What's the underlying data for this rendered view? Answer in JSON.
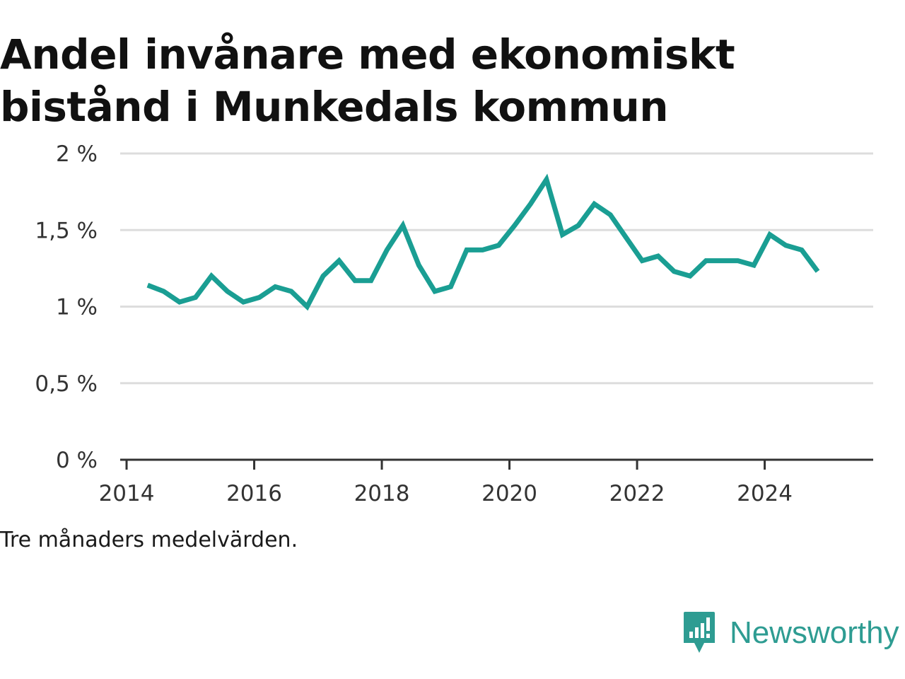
{
  "title": "Andel invånare med ekonomiskt bistånd i Munkedals kommun",
  "note": "Tre månaders medelvärden.",
  "brand": {
    "name": "Newsworthy",
    "icon": "newsworthy-logo-icon"
  },
  "colors": {
    "line": "#1a9e93",
    "grid": "#dddddd",
    "axis": "#333333",
    "brand": "#2e9c92"
  },
  "chart_data": {
    "type": "line",
    "title": "Andel invånare med ekonomiskt bistånd i Munkedals kommun",
    "xlabel": "",
    "ylabel": "",
    "xlim": [
      2013.9,
      2025.7
    ],
    "ylim": [
      0,
      2
    ],
    "grid": true,
    "legend": "none",
    "x_ticks": [
      2014,
      2016,
      2018,
      2020,
      2022,
      2024
    ],
    "x_tick_labels": [
      "2014",
      "2016",
      "2018",
      "2020",
      "2022",
      "2024"
    ],
    "y_ticks": [
      0,
      0.5,
      1,
      1.5,
      2
    ],
    "y_tick_labels": [
      "0 %",
      "0,5 %",
      "1 %",
      "1,5 %",
      "2 %"
    ],
    "series": [
      {
        "x": [
          2014.33,
          2014.58,
          2014.83,
          2015.08,
          2015.33,
          2015.58,
          2015.83,
          2016.08,
          2016.33,
          2016.58,
          2016.83,
          2017.08,
          2017.33,
          2017.58,
          2017.83,
          2018.08,
          2018.33,
          2018.58,
          2018.83,
          2019.08,
          2019.33,
          2019.58,
          2019.83,
          2020.08,
          2020.33,
          2020.58,
          2020.83,
          2021.08,
          2021.33,
          2021.58,
          2021.83,
          2022.08,
          2022.33,
          2022.58,
          2022.83,
          2023.08,
          2023.33,
          2023.58,
          2023.83,
          2024.08,
          2024.33,
          2024.58,
          2024.83
        ],
        "values": [
          1.14,
          1.1,
          1.03,
          1.06,
          1.2,
          1.1,
          1.03,
          1.06,
          1.13,
          1.1,
          1.0,
          1.2,
          1.3,
          1.17,
          1.17,
          1.37,
          1.53,
          1.27,
          1.1,
          1.13,
          1.37,
          1.37,
          1.4,
          1.53,
          1.67,
          1.83,
          1.47,
          1.53,
          1.67,
          1.6,
          1.45,
          1.3,
          1.33,
          1.23,
          1.2,
          1.3,
          1.3,
          1.3,
          1.27,
          1.47,
          1.4,
          1.37,
          1.23
        ]
      }
    ]
  }
}
